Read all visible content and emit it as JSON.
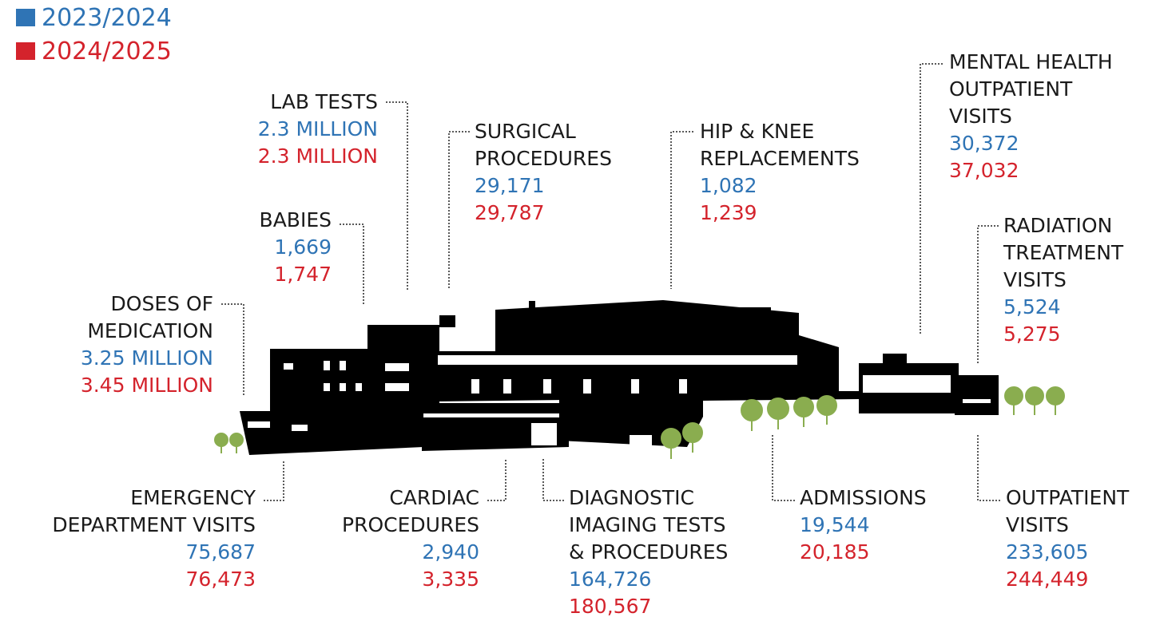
{
  "legend": [
    {
      "label": "2023/2024",
      "color": "#2f74b5"
    },
    {
      "label": "2024/2025",
      "color": "#d4232c"
    }
  ],
  "stats": [
    {
      "label": [
        "LAB TESTS"
      ],
      "values": [
        "2.3 MILLION",
        "2.3 MILLION"
      ]
    },
    {
      "label": [
        "BABIES"
      ],
      "values": [
        "1,669",
        "1,747"
      ]
    },
    {
      "label": [
        "DOSES OF",
        "MEDICATION"
      ],
      "values": [
        "3.25 MILLION",
        "3.45 MILLION"
      ]
    },
    {
      "label": [
        "SURGICAL",
        "PROCEDURES"
      ],
      "values": [
        "29,171",
        "29,787"
      ]
    },
    {
      "label": [
        "HIP & KNEE",
        "REPLACEMENTS"
      ],
      "values": [
        "1,082",
        "1,239"
      ]
    },
    {
      "label": [
        "MENTAL HEALTH",
        "OUTPATIENT",
        "VISITS"
      ],
      "values": [
        "30,372",
        "37,032"
      ]
    },
    {
      "label": [
        "RADIATION",
        "TREATMENT",
        "VISITS"
      ],
      "values": [
        "5,524",
        "5,275"
      ]
    },
    {
      "label": [
        "EMERGENCY",
        "DEPARTMENT VISITS"
      ],
      "values": [
        "75,687",
        "76,473"
      ]
    },
    {
      "label": [
        "CARDIAC",
        "PROCEDURES"
      ],
      "values": [
        "2,940",
        "3,335"
      ]
    },
    {
      "label": [
        "DIAGNOSTIC",
        "IMAGING TESTS",
        "& PROCEDURES"
      ],
      "values": [
        "164,726",
        "180,567"
      ]
    },
    {
      "label": [
        "ADMISSIONS"
      ],
      "values": [
        "19,544",
        "20,185"
      ]
    },
    {
      "label": [
        "OUTPATIENT",
        "VISITS"
      ],
      "values": [
        "233,605",
        "244,449"
      ]
    }
  ]
}
